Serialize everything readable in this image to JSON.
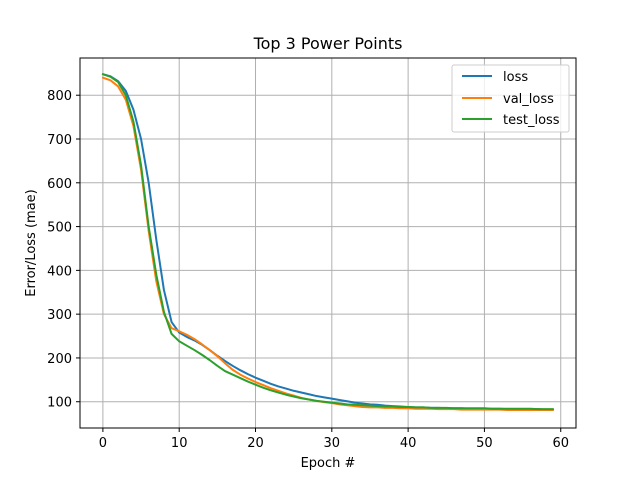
{
  "chart_data": {
    "type": "line",
    "title": "Top 3 Power Points",
    "xlabel": "Epoch #",
    "ylabel": "Error/Loss (mae)",
    "xlim": [
      -3,
      62
    ],
    "ylim": [
      40,
      885
    ],
    "xticks": [
      0,
      10,
      20,
      30,
      40,
      50,
      60
    ],
    "yticks": [
      100,
      200,
      300,
      400,
      500,
      600,
      700,
      800
    ],
    "grid": true,
    "legend_position": "top-right",
    "x": [
      0,
      1,
      2,
      3,
      4,
      5,
      6,
      7,
      8,
      9,
      10,
      11,
      12,
      13,
      14,
      15,
      16,
      17,
      18,
      19,
      20,
      21,
      22,
      23,
      24,
      25,
      26,
      27,
      28,
      29,
      30,
      31,
      32,
      33,
      34,
      35,
      36,
      37,
      38,
      39,
      40,
      41,
      42,
      43,
      44,
      45,
      46,
      47,
      48,
      49,
      50,
      51,
      52,
      53,
      54,
      55,
      56,
      57,
      58,
      59
    ],
    "series": [
      {
        "name": "loss",
        "color": "#1f77b4",
        "values": [
          848,
          843,
          832,
          810,
          767,
          700,
          600,
          470,
          355,
          282,
          258,
          248,
          240,
          230,
          218,
          205,
          193,
          182,
          172,
          163,
          155,
          148,
          141,
          135,
          130,
          125,
          121,
          117,
          113,
          110,
          107,
          104,
          101,
          98,
          96,
          94,
          93,
          91,
          90,
          89,
          88,
          87,
          87,
          86,
          86,
          85,
          85,
          85,
          84,
          84,
          84,
          84,
          84,
          83,
          83,
          83,
          83,
          83,
          82,
          82
        ]
      },
      {
        "name": "val_loss",
        "color": "#ff7f0e",
        "values": [
          840,
          834,
          820,
          790,
          730,
          630,
          490,
          375,
          300,
          268,
          261,
          253,
          243,
          231,
          218,
          204,
          188,
          173,
          162,
          153,
          145,
          138,
          131,
          125,
          119,
          114,
          109,
          105,
          102,
          99,
          97,
          94,
          92,
          90,
          88,
          87,
          87,
          86,
          86,
          85,
          85,
          84,
          84,
          84,
          83,
          83,
          83,
          82,
          82,
          82,
          82,
          82,
          82,
          81,
          81,
          81,
          81,
          81,
          81,
          81
        ]
      },
      {
        "name": "test_loss",
        "color": "#2ca02c",
        "values": [
          848,
          842,
          830,
          800,
          740,
          640,
          500,
          390,
          305,
          255,
          238,
          228,
          218,
          207,
          195,
          182,
          170,
          162,
          154,
          146,
          139,
          132,
          126,
          121,
          116,
          112,
          108,
          105,
          102,
          100,
          98,
          96,
          94,
          93,
          92,
          91,
          90,
          89,
          89,
          88,
          88,
          87,
          87,
          86,
          86,
          86,
          85,
          85,
          85,
          85,
          85,
          84,
          84,
          84,
          84,
          84,
          84,
          83,
          83,
          83
        ]
      }
    ]
  }
}
